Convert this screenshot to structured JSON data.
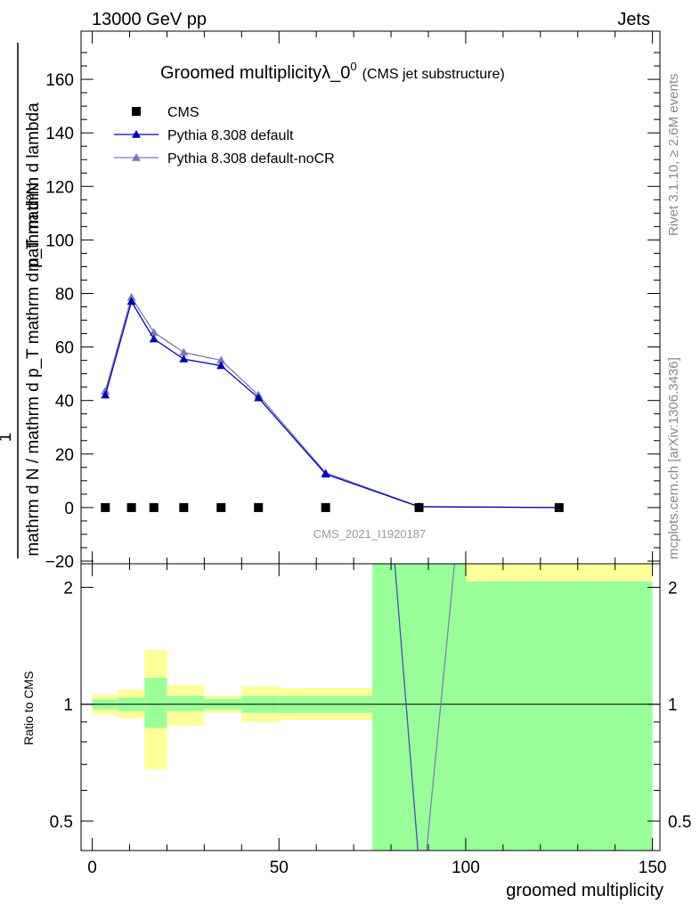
{
  "header": {
    "left": "13000 GeV pp",
    "right": "Jets"
  },
  "side_labels": {
    "rivet": "Rivet 3.1.10, ≥ 2.6M events",
    "mcplots": "mcplots.cern.ch [arXiv:1306.3436]"
  },
  "chart_data": [
    {
      "type": "scatter",
      "panel": "main",
      "title": "Groomed multiplicityλ_0",
      "title_sup": "0",
      "subtitle": "(CMS jet substructure)",
      "ylabel_top": "1",
      "ylabel_numerator": "mathrm d²N",
      "ylabel_denominator": "mathrm d N / mathrm d p_T mathrm d p_T mathrm d lambda",
      "watermark": "CMS_2021_I1920187",
      "xlim": [
        -3,
        152
      ],
      "ylim": [
        -21,
        178
      ],
      "y_ticks": [
        -20,
        0,
        20,
        40,
        60,
        80,
        100,
        120,
        140,
        160
      ],
      "legend_position": "top-left",
      "series": [
        {
          "name": "CMS",
          "marker": "square",
          "color": "#000000",
          "x": [
            3.5,
            10.5,
            16.5,
            24.5,
            34.5,
            44.5,
            62.5,
            87.5,
            125
          ],
          "y": [
            0,
            0,
            0,
            0,
            0,
            0,
            0,
            0,
            0
          ]
        },
        {
          "name": "Pythia 8.308 default",
          "marker": "triangle",
          "color": "#0000bb",
          "x": [
            3.5,
            10.5,
            16.5,
            24.5,
            34.5,
            44.5,
            62.5,
            87.5,
            125
          ],
          "y": [
            42,
            77,
            63,
            55.5,
            53,
            41,
            12.5,
            0.3,
            0
          ]
        },
        {
          "name": "Pythia 8.308 default-noCR",
          "marker": "triangle",
          "color": "#7a7ab8",
          "x": [
            3.5,
            10.5,
            16.5,
            24.5,
            34.5,
            44.5,
            62.5,
            87.5,
            125
          ],
          "y": [
            43.5,
            78.5,
            65.5,
            58,
            55,
            42,
            13,
            0.4,
            0
          ]
        }
      ]
    },
    {
      "type": "line",
      "panel": "ratio",
      "ylabel": "Ratio to CMS",
      "xlabel": "groomed multiplicity",
      "xlim": [
        -3,
        152
      ],
      "ylim": [
        0.42,
        2.3
      ],
      "log_y": true,
      "x_ticks": [
        0,
        50,
        100,
        150
      ],
      "y_ticks": [
        0.5,
        1,
        2
      ],
      "reference_line": 1,
      "uncertainty_bands": [
        {
          "x0": 0,
          "x1": 7,
          "stat_lo": 0.97,
          "stat_hi": 1.03,
          "tot_lo": 0.94,
          "tot_hi": 1.06
        },
        {
          "x0": 7,
          "x1": 14,
          "stat_lo": 0.96,
          "stat_hi": 1.04,
          "tot_lo": 0.92,
          "tot_hi": 1.09
        },
        {
          "x0": 14,
          "x1": 20,
          "stat_lo": 0.87,
          "stat_hi": 1.17,
          "tot_lo": 0.68,
          "tot_hi": 1.38
        },
        {
          "x0": 20,
          "x1": 30,
          "stat_lo": 0.96,
          "stat_hi": 1.05,
          "tot_lo": 0.88,
          "tot_hi": 1.12
        },
        {
          "x0": 30,
          "x1": 40,
          "stat_lo": 0.97,
          "stat_hi": 1.03,
          "tot_lo": 0.95,
          "tot_hi": 1.05
        },
        {
          "x0": 40,
          "x1": 50,
          "stat_lo": 0.95,
          "stat_hi": 1.05,
          "tot_lo": 0.9,
          "tot_hi": 1.11
        },
        {
          "x0": 50,
          "x1": 75,
          "stat_lo": 0.95,
          "stat_hi": 1.05,
          "tot_lo": 0.91,
          "tot_hi": 1.1
        },
        {
          "x0": 75,
          "x1": 100,
          "stat_lo": 0.4,
          "stat_hi": 2.4,
          "tot_lo": 0.4,
          "tot_hi": 2.4
        },
        {
          "x0": 100,
          "x1": 150,
          "stat_lo": 0.4,
          "stat_hi": 2.07,
          "tot_lo": 0.4,
          "tot_hi": 2.4
        }
      ],
      "band_colors": {
        "total": "#ffff99",
        "stat": "#99ff99"
      },
      "series": [
        {
          "name": "Pythia 8.308 default",
          "color": "#4a4ac8",
          "x": [
            81,
            87.2
          ],
          "y": [
            2.4,
            0.4
          ]
        },
        {
          "name": "Pythia 8.308 default-noCR",
          "color": "#8080c0",
          "x": [
            89.5,
            97
          ],
          "y": [
            0.4,
            2.4
          ]
        }
      ]
    }
  ]
}
